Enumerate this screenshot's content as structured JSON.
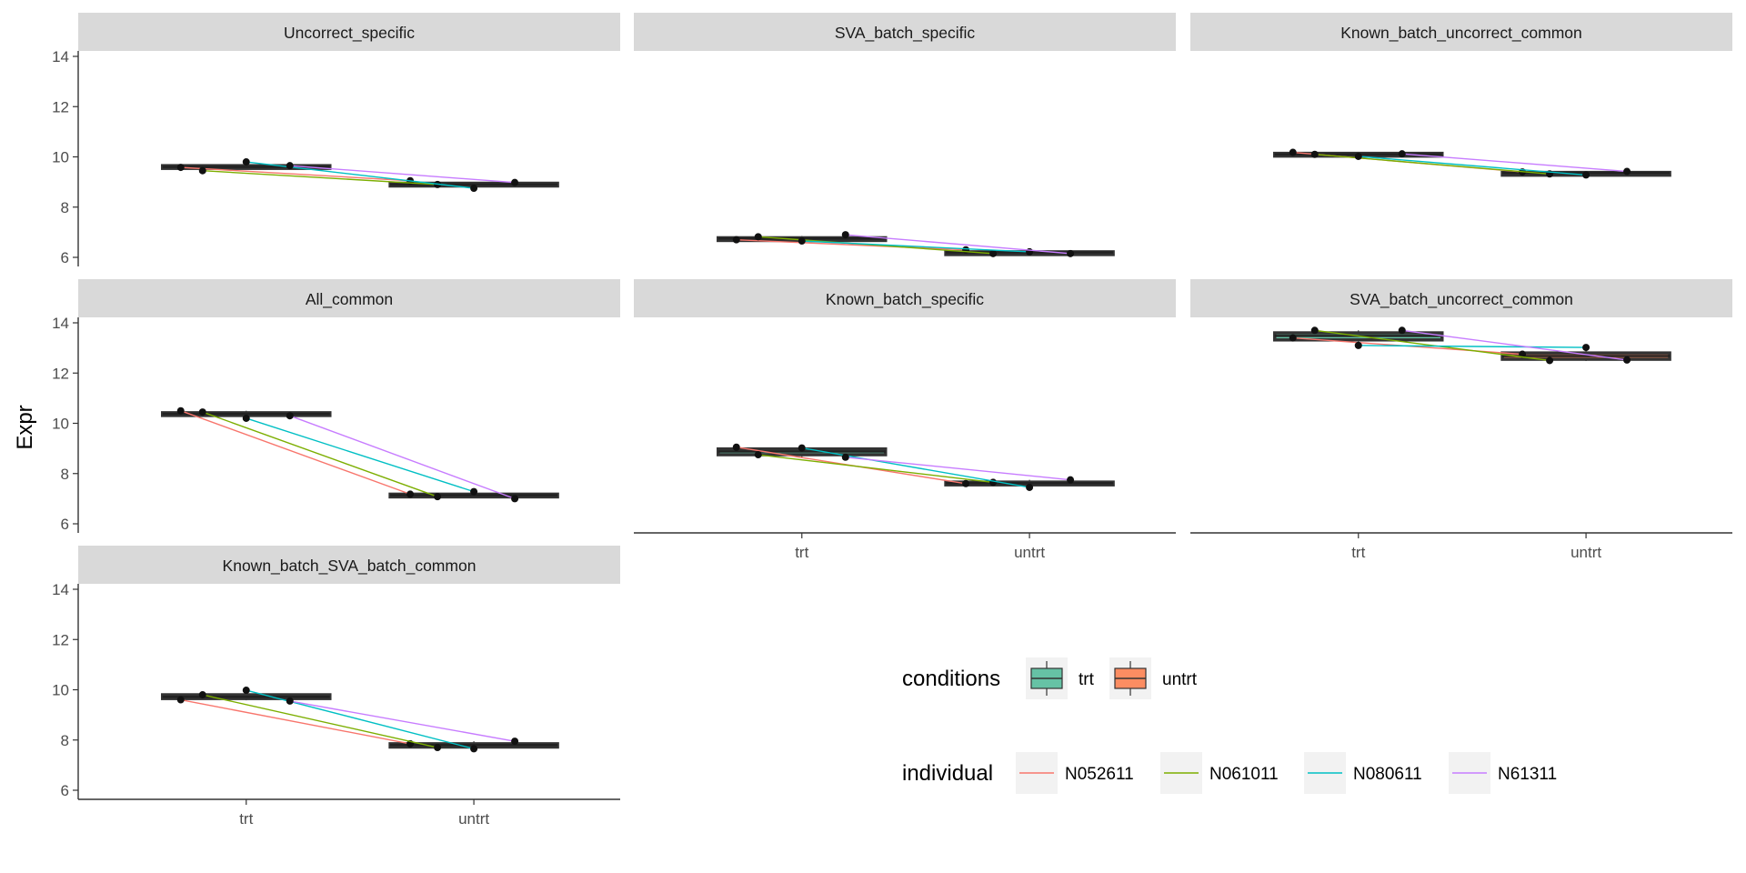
{
  "chart_data": {
    "type": "box",
    "ylabel": "Expr",
    "xlabel": "",
    "categories": [
      "trt",
      "untrt"
    ],
    "y_ticks": [
      6,
      8,
      10,
      12,
      14
    ],
    "ylim": [
      6,
      14
    ],
    "grid": false,
    "legend_position": "bottom-right",
    "colors": {
      "conditions": {
        "trt": "#66C2A5",
        "untrt": "#FC8D62"
      },
      "individual": {
        "N052611": "#F8766D",
        "N061011": "#7CAE00",
        "N080611": "#00BFC4",
        "N61311": "#C77CFF"
      }
    },
    "legends": {
      "conditions": {
        "title": "conditions",
        "items": [
          "trt",
          "untrt"
        ]
      },
      "individual": {
        "title": "individual",
        "items": [
          "N052611",
          "N061011",
          "N080611",
          "N61311"
        ]
      }
    },
    "panels": [
      {
        "title": "Uncorrect_specific",
        "box": {
          "trt": [
            9.52,
            9.58,
            9.6,
            9.65,
            9.7
          ],
          "untrt": [
            8.82,
            8.88,
            8.9,
            8.95,
            9.0
          ]
        },
        "series": [
          {
            "name": "N052611",
            "values": [
              9.58,
              9.05
            ]
          },
          {
            "name": "N061011",
            "values": [
              9.45,
              8.9
            ]
          },
          {
            "name": "N080611",
            "values": [
              9.8,
              8.75
            ]
          },
          {
            "name": "N61311",
            "values": [
              9.65,
              8.98
            ]
          }
        ]
      },
      {
        "title": "SVA_batch_specific",
        "box": {
          "trt": [
            6.65,
            6.7,
            6.75,
            6.78,
            6.85
          ],
          "untrt": [
            6.12,
            6.16,
            6.2,
            6.22,
            6.25
          ]
        },
        "series": [
          {
            "name": "N052611",
            "values": [
              6.7,
              6.3
            ]
          },
          {
            "name": "N061011",
            "values": [
              6.82,
              6.15
            ]
          },
          {
            "name": "N080611",
            "values": [
              6.65,
              6.22
            ]
          },
          {
            "name": "N61311",
            "values": [
              6.9,
              6.15
            ]
          }
        ]
      },
      {
        "title": "Known_batch_uncorrect_common",
        "box": {
          "trt": [
            10.02,
            10.07,
            10.1,
            10.14,
            10.2
          ],
          "untrt": [
            9.28,
            9.33,
            9.36,
            9.38,
            9.42
          ]
        },
        "series": [
          {
            "name": "N052611",
            "values": [
              10.18,
              9.4
            ]
          },
          {
            "name": "N061011",
            "values": [
              10.1,
              9.32
            ]
          },
          {
            "name": "N080611",
            "values": [
              10.02,
              9.28
            ]
          },
          {
            "name": "N61311",
            "values": [
              10.12,
              9.42
            ]
          }
        ]
      },
      {
        "title": "All_common",
        "box": {
          "trt": [
            10.25,
            10.32,
            10.38,
            10.42,
            10.5
          ],
          "untrt": [
            7.02,
            7.1,
            7.14,
            7.18,
            7.28
          ]
        },
        "series": [
          {
            "name": "N052611",
            "values": [
              10.5,
              7.18
            ]
          },
          {
            "name": "N061011",
            "values": [
              10.45,
              7.08
            ]
          },
          {
            "name": "N080611",
            "values": [
              10.2,
              7.28
            ]
          },
          {
            "name": "N61311",
            "values": [
              10.3,
              7.0
            ]
          }
        ]
      },
      {
        "title": "Known_batch_specific",
        "box": {
          "trt": [
            8.62,
            8.75,
            8.88,
            8.98,
            9.05
          ],
          "untrt": [
            7.45,
            7.55,
            7.62,
            7.66,
            7.75
          ]
        },
        "series": [
          {
            "name": "N052611",
            "values": [
              9.05,
              7.6
            ]
          },
          {
            "name": "N061011",
            "values": [
              8.75,
              7.65
            ]
          },
          {
            "name": "N080611",
            "values": [
              9.02,
              7.45
            ]
          },
          {
            "name": "N61311",
            "values": [
              8.65,
              7.75
            ]
          }
        ]
      },
      {
        "title": "SVA_batch_uncorrect_common",
        "box": {
          "trt": [
            13.1,
            13.32,
            13.48,
            13.6,
            13.7
          ],
          "untrt": [
            12.48,
            12.55,
            12.68,
            12.8,
            13.0
          ]
        },
        "series": [
          {
            "name": "N052611",
            "values": [
              13.4,
              12.75
            ]
          },
          {
            "name": "N061011",
            "values": [
              13.7,
              12.5
            ]
          },
          {
            "name": "N080611",
            "values": [
              13.1,
              13.02
            ]
          },
          {
            "name": "N61311",
            "values": [
              13.7,
              12.52
            ]
          }
        ]
      },
      {
        "title": "Known_batch_SVA_batch_common",
        "box": {
          "trt": [
            9.58,
            9.65,
            9.72,
            9.8,
            9.98
          ],
          "untrt": [
            7.62,
            7.72,
            7.8,
            7.85,
            7.95
          ]
        },
        "series": [
          {
            "name": "N052611",
            "values": [
              9.6,
              7.85
            ]
          },
          {
            "name": "N061011",
            "values": [
              9.8,
              7.7
            ]
          },
          {
            "name": "N080611",
            "values": [
              9.98,
              7.65
            ]
          },
          {
            "name": "N61311",
            "values": [
              9.55,
              7.95
            ]
          }
        ]
      }
    ]
  }
}
